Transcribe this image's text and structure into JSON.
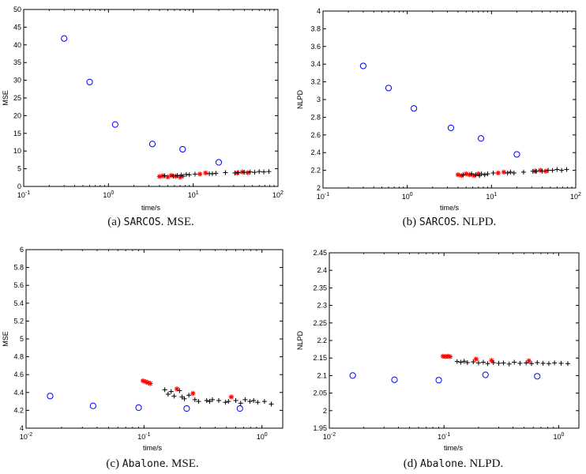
{
  "chart_data": [
    {
      "id": "a",
      "type": "scatter",
      "xscale": "log",
      "xlabel": "time/s",
      "ylabel": "MSE",
      "xlim": [
        0.1,
        100
      ],
      "ylim": [
        0,
        50
      ],
      "xticks": [
        0.1,
        1,
        10,
        100
      ],
      "xtick_labels": [
        [
          "10",
          "-1"
        ],
        [
          "10",
          "0"
        ],
        [
          "10",
          "1"
        ],
        [
          "10",
          "2"
        ]
      ],
      "yticks": [
        0,
        5,
        10,
        15,
        20,
        25,
        30,
        35,
        40,
        45,
        50
      ],
      "ytick_labels": [
        "0",
        "5",
        "10",
        "15",
        "20",
        "25",
        "30",
        "35",
        "40",
        "45",
        "50"
      ],
      "caption": {
        "prefix": "(a)",
        "dataset": "SARCOS",
        "rest": ". MSE."
      },
      "series": [
        {
          "marker": "circle",
          "color": "#0000ff",
          "x": [
            0.3,
            0.6,
            1.2,
            3.3,
            7.5,
            20
          ],
          "y": [
            41.8,
            29.5,
            17.5,
            12.0,
            10.5,
            6.8
          ]
        },
        {
          "marker": "star",
          "color": "#ff0000",
          "x": [
            4.0,
            4.4,
            5.0,
            5.5,
            6.2,
            7.0,
            12.0,
            14.0,
            33,
            38,
            44
          ],
          "y": [
            2.8,
            3.0,
            2.7,
            3.1,
            2.9,
            2.6,
            3.5,
            3.8,
            3.8,
            4.1,
            3.9
          ]
        },
        {
          "marker": "plus",
          "color": "#000000",
          "x": [
            4.6,
            5.8,
            6.5,
            7.2,
            7.6,
            8.3,
            9.0,
            10.5,
            15.5,
            16.8,
            18.5,
            24,
            31,
            34,
            40,
            47,
            53,
            60,
            68,
            78
          ],
          "y": [
            3.0,
            2.9,
            3.1,
            3.2,
            2.9,
            3.4,
            3.3,
            3.5,
            3.6,
            3.6,
            3.7,
            3.9,
            3.8,
            3.9,
            4.0,
            4.1,
            4.0,
            4.2,
            4.1,
            4.2
          ]
        }
      ]
    },
    {
      "id": "b",
      "type": "scatter",
      "xscale": "log",
      "xlabel": "time/s",
      "ylabel": "NLPD",
      "xlim": [
        0.1,
        100
      ],
      "ylim": [
        2,
        4
      ],
      "xticks": [
        0.1,
        1,
        10,
        100
      ],
      "xtick_labels": [
        [
          "10",
          "-1"
        ],
        [
          "10",
          "0"
        ],
        [
          "10",
          "1"
        ],
        [
          "10",
          "2"
        ]
      ],
      "yticks": [
        2,
        2.2,
        2.4,
        2.6,
        2.8,
        3,
        3.2,
        3.4,
        3.6,
        3.8,
        4
      ],
      "ytick_labels": [
        "2",
        "2.2",
        "2.4",
        "2.6",
        "2.8",
        "3",
        "3.2",
        "3.4",
        "3.6",
        "3.8",
        "4"
      ],
      "caption": {
        "prefix": "(b)",
        "dataset": "SARCOS",
        "rest": ". NLPD."
      },
      "series": [
        {
          "marker": "circle",
          "color": "#0000ff",
          "x": [
            0.3,
            0.6,
            1.2,
            3.3,
            7.5,
            20
          ],
          "y": [
            3.38,
            3.13,
            2.9,
            2.68,
            2.56,
            2.38
          ]
        },
        {
          "marker": "star",
          "color": "#ff0000",
          "x": [
            4.0,
            4.4,
            5.0,
            5.5,
            6.2,
            7.0,
            12.0,
            14.0,
            33,
            38,
            44
          ],
          "y": [
            2.15,
            2.14,
            2.16,
            2.15,
            2.14,
            2.16,
            2.17,
            2.18,
            2.19,
            2.2,
            2.19
          ]
        },
        {
          "marker": "plus",
          "color": "#000000",
          "x": [
            4.6,
            5.8,
            6.5,
            7.2,
            7.6,
            8.3,
            9.0,
            10.5,
            15.5,
            16.8,
            18.5,
            24,
            31,
            34,
            40,
            47,
            53,
            60,
            68,
            78
          ],
          "y": [
            2.15,
            2.16,
            2.15,
            2.14,
            2.16,
            2.15,
            2.16,
            2.17,
            2.17,
            2.18,
            2.17,
            2.18,
            2.19,
            2.19,
            2.19,
            2.2,
            2.2,
            2.21,
            2.2,
            2.21
          ]
        }
      ]
    },
    {
      "id": "c",
      "type": "scatter",
      "xscale": "log",
      "xlabel": "time/s",
      "ylabel": "MSE",
      "xlim": [
        0.01,
        1.5
      ],
      "ylim": [
        4,
        6
      ],
      "xticks": [
        0.01,
        0.1,
        1
      ],
      "xtick_labels": [
        [
          "10",
          "-2"
        ],
        [
          "10",
          "-1"
        ],
        [
          "10",
          "0"
        ]
      ],
      "yticks": [
        4,
        4.2,
        4.4,
        4.6,
        4.8,
        5,
        5.2,
        5.4,
        5.6,
        5.8,
        6
      ],
      "ytick_labels": [
        "4",
        "4.2",
        "4.4",
        "4.6",
        "4.8",
        "5",
        "5.2",
        "5.4",
        "5.6",
        "5.8",
        "6"
      ],
      "caption": {
        "prefix": "(c)",
        "dataset": "Abalone",
        "rest": ". MSE."
      },
      "series": [
        {
          "marker": "circle",
          "color": "#0000ff",
          "x": [
            0.016,
            0.037,
            0.09,
            0.23,
            0.65
          ],
          "y": [
            4.36,
            4.25,
            4.23,
            4.22,
            4.22
          ]
        },
        {
          "marker": "star",
          "color": "#ff0000",
          "x": [
            0.098,
            0.103,
            0.108,
            0.113,
            0.19,
            0.26,
            0.55
          ],
          "y": [
            4.53,
            4.52,
            4.51,
            4.5,
            4.44,
            4.39,
            4.35
          ]
        },
        {
          "marker": "plus",
          "color": "#000000",
          "x": [
            0.15,
            0.16,
            0.17,
            0.18,
            0.2,
            0.21,
            0.22,
            0.24,
            0.27,
            0.29,
            0.34,
            0.36,
            0.38,
            0.43,
            0.49,
            0.52,
            0.6,
            0.66,
            0.72,
            0.79,
            0.85,
            0.92,
            1.05,
            1.2
          ],
          "y": [
            4.43,
            4.38,
            4.41,
            4.36,
            4.42,
            4.35,
            4.33,
            4.37,
            4.32,
            4.3,
            4.31,
            4.3,
            4.32,
            4.31,
            4.29,
            4.3,
            4.31,
            4.28,
            4.32,
            4.3,
            4.31,
            4.29,
            4.3,
            4.27
          ]
        }
      ]
    },
    {
      "id": "d",
      "type": "scatter",
      "xscale": "log",
      "xlabel": "time/s",
      "ylabel": "NLPD",
      "xlim": [
        0.01,
        1.5
      ],
      "ylim": [
        1.95,
        2.45
      ],
      "xticks": [
        0.01,
        0.1,
        1
      ],
      "xtick_labels": [
        [
          "10",
          "-2"
        ],
        [
          "10",
          "-1"
        ],
        [
          "10",
          "0"
        ]
      ],
      "yticks": [
        1.95,
        2,
        2.05,
        2.1,
        2.15,
        2.2,
        2.25,
        2.3,
        2.35,
        2.4,
        2.45
      ],
      "ytick_labels": [
        "1.95",
        "2",
        "2.05",
        "2.1",
        "2.15",
        "2.2",
        "2.25",
        "2.3",
        "2.35",
        "2.4",
        "2.45"
      ],
      "caption": {
        "prefix": "(d)",
        "dataset": "Abalone",
        "rest": ". NLPD."
      },
      "series": [
        {
          "marker": "circle",
          "color": "#0000ff",
          "x": [
            0.016,
            0.037,
            0.09,
            0.23,
            0.65
          ],
          "y": [
            2.1,
            2.088,
            2.087,
            2.102,
            2.098
          ]
        },
        {
          "marker": "star",
          "color": "#ff0000",
          "x": [
            0.098,
            0.103,
            0.108,
            0.113,
            0.19,
            0.26,
            0.55
          ],
          "y": [
            2.155,
            2.154,
            2.155,
            2.154,
            2.147,
            2.143,
            2.142
          ]
        },
        {
          "marker": "plus",
          "color": "#000000",
          "x": [
            0.13,
            0.14,
            0.15,
            0.16,
            0.18,
            0.2,
            0.22,
            0.24,
            0.27,
            0.3,
            0.33,
            0.37,
            0.41,
            0.46,
            0.52,
            0.58,
            0.65,
            0.73,
            0.82,
            0.92,
            1.05,
            1.2
          ],
          "y": [
            2.14,
            2.138,
            2.141,
            2.137,
            2.139,
            2.136,
            2.138,
            2.134,
            2.137,
            2.135,
            2.136,
            2.133,
            2.138,
            2.135,
            2.136,
            2.134,
            2.137,
            2.135,
            2.134,
            2.136,
            2.135,
            2.134
          ]
        }
      ]
    }
  ]
}
